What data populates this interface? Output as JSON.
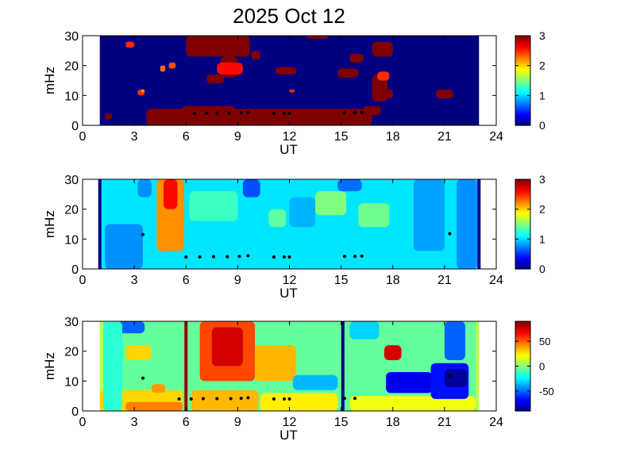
{
  "title": "2025 Oct 12",
  "colors": {
    "background": "#ffffff",
    "plot_fill_saturated": "#00008f",
    "marker": "#000000"
  },
  "chart_data": [
    {
      "type": "heatmap",
      "panel": "top",
      "colormap": "jet",
      "xlabel": "UT",
      "ylabel": "mHz",
      "xlim": [
        0,
        24
      ],
      "ylim": [
        0,
        30
      ],
      "xticks": [
        "0",
        "3",
        "6",
        "9",
        "12",
        "15",
        "18",
        "21",
        "24"
      ],
      "yticks": [
        "0",
        "10",
        "20",
        "30"
      ],
      "data_extent_ut": [
        1,
        23
      ],
      "colorbar": {
        "min": 0,
        "max": 3,
        "ticks": [
          "0",
          "1",
          "2",
          "3"
        ]
      },
      "background_value": 0,
      "features": [
        {
          "ut": [
            3.7,
            16.8
          ],
          "mhz": [
            0,
            5.5
          ],
          "value": 3
        },
        {
          "ut": [
            5.8,
            8.8
          ],
          "mhz": [
            5,
            6.5
          ],
          "value": 3
        },
        {
          "ut": [
            16.3,
            17.3
          ],
          "mhz": [
            3.5,
            6.5
          ],
          "value": 3
        },
        {
          "ut": [
            6.0,
            9.7
          ],
          "mhz": [
            23,
            30
          ],
          "value": 3
        },
        {
          "ut": [
            8.0,
            9.0
          ],
          "mhz": [
            16,
            23
          ],
          "value": 3
        },
        {
          "ut": [
            7.8,
            9.3
          ],
          "mhz": [
            17,
            21
          ],
          "value": 2.6
        },
        {
          "ut": [
            7.2,
            8.2
          ],
          "mhz": [
            14,
            17
          ],
          "value": 3
        },
        {
          "ut": [
            15.5,
            16.3
          ],
          "mhz": [
            21,
            24
          ],
          "value": 3
        },
        {
          "ut": [
            16.8,
            18.0
          ],
          "mhz": [
            23,
            28
          ],
          "value": 3
        },
        {
          "ut": [
            16.8,
            17.7
          ],
          "mhz": [
            8,
            17
          ],
          "value": 3
        },
        {
          "ut": [
            17.1,
            17.8
          ],
          "mhz": [
            15,
            18
          ],
          "value": 2.5
        },
        {
          "ut": [
            14.8,
            16.0
          ],
          "mhz": [
            16,
            19
          ],
          "value": 3
        },
        {
          "ut": [
            11.2,
            12.4
          ],
          "mhz": [
            17,
            19.5
          ],
          "value": 3
        },
        {
          "ut": [
            13.0,
            14.2
          ],
          "mhz": [
            29,
            30
          ],
          "value": 3
        },
        {
          "ut": [
            17.7,
            18.0
          ],
          "mhz": [
            9,
            12
          ],
          "value": 3
        },
        {
          "ut": [
            20.5,
            21.5
          ],
          "mhz": [
            9,
            12
          ],
          "value": 3
        },
        {
          "ut": [
            9.8,
            10.3
          ],
          "mhz": [
            22,
            25
          ],
          "value": 3
        },
        {
          "ut": [
            1.3,
            1.7
          ],
          "mhz": [
            2,
            4
          ],
          "value": 3
        },
        {
          "ut": [
            3.2,
            3.6
          ],
          "mhz": [
            10,
            12
          ],
          "value": 2.5
        },
        {
          "ut": [
            4.5,
            4.8
          ],
          "mhz": [
            18,
            20
          ],
          "value": 2.3
        },
        {
          "ut": [
            3.4,
            3.6
          ],
          "mhz": [
            11,
            12
          ],
          "value": 2.2
        },
        {
          "ut": [
            5.0,
            5.4
          ],
          "mhz": [
            19,
            21
          ],
          "value": 2.4
        },
        {
          "ut": [
            2.5,
            3.0
          ],
          "mhz": [
            26,
            28
          ],
          "value": 2.5
        },
        {
          "ut": [
            12.0,
            12.3
          ],
          "mhz": [
            11,
            12
          ],
          "value": 2.5
        }
      ],
      "markers": [
        {
          "ut": 6.5,
          "mhz": 3.9
        },
        {
          "ut": 7.2,
          "mhz": 4.0
        },
        {
          "ut": 7.8,
          "mhz": 4.1
        },
        {
          "ut": 8.5,
          "mhz": 4.1
        },
        {
          "ut": 9.2,
          "mhz": 4.2
        },
        {
          "ut": 9.6,
          "mhz": 4.4
        },
        {
          "ut": 11.1,
          "mhz": 4.0
        },
        {
          "ut": 11.7,
          "mhz": 4.0
        },
        {
          "ut": 12.0,
          "mhz": 4.0
        },
        {
          "ut": 15.2,
          "mhz": 4.2
        },
        {
          "ut": 15.8,
          "mhz": 4.2
        },
        {
          "ut": 16.2,
          "mhz": 4.3
        }
      ]
    },
    {
      "type": "heatmap",
      "panel": "middle",
      "colormap": "jet",
      "xlabel": "UT",
      "ylabel": "mHz",
      "xlim": [
        0,
        24
      ],
      "ylim": [
        0,
        30
      ],
      "xticks": [
        "0",
        "3",
        "6",
        "9",
        "12",
        "15",
        "18",
        "21",
        "24"
      ],
      "yticks": [
        "0",
        "10",
        "20",
        "30"
      ],
      "data_extent_ut": [
        1,
        23
      ],
      "colorbar": {
        "min": 0,
        "max": 3,
        "ticks": [
          "0",
          "1",
          "2",
          "3"
        ]
      },
      "background_value": 1.05,
      "edge_lines_ut": [
        1,
        23
      ],
      "features": [
        {
          "ut": [
            4.3,
            5.9
          ],
          "mhz": [
            6,
            30
          ],
          "value": 2.2
        },
        {
          "ut": [
            4.7,
            5.5
          ],
          "mhz": [
            20,
            30
          ],
          "value": 2.6
        },
        {
          "ut": [
            1.3,
            3.5
          ],
          "mhz": [
            0,
            15
          ],
          "value": 0.8
        },
        {
          "ut": [
            3.2,
            4.0
          ],
          "mhz": [
            24,
            30
          ],
          "value": 0.8
        },
        {
          "ut": [
            9.3,
            10.3
          ],
          "mhz": [
            24,
            30
          ],
          "value": 0.6
        },
        {
          "ut": [
            12.0,
            13.5
          ],
          "mhz": [
            14,
            24
          ],
          "value": 0.9
        },
        {
          "ut": [
            13.5,
            15.3
          ],
          "mhz": [
            18,
            26
          ],
          "value": 1.5
        },
        {
          "ut": [
            16.0,
            17.8
          ],
          "mhz": [
            14,
            22
          ],
          "value": 1.45
        },
        {
          "ut": [
            10.8,
            11.8
          ],
          "mhz": [
            14,
            20
          ],
          "value": 1.4
        },
        {
          "ut": [
            6.2,
            9.0
          ],
          "mhz": [
            16,
            26
          ],
          "value": 1.3
        },
        {
          "ut": [
            19.2,
            21.0
          ],
          "mhz": [
            6,
            30
          ],
          "value": 0.85
        },
        {
          "ut": [
            21.7,
            22.9
          ],
          "mhz": [
            0,
            30
          ],
          "value": 0.8
        },
        {
          "ut": [
            14.8,
            16.2
          ],
          "mhz": [
            26,
            30
          ],
          "value": 0.7
        }
      ],
      "markers": [
        {
          "ut": 3.5,
          "mhz": 11.5
        },
        {
          "ut": 6.0,
          "mhz": 4.0
        },
        {
          "ut": 6.8,
          "mhz": 4.0
        },
        {
          "ut": 7.6,
          "mhz": 4.1
        },
        {
          "ut": 8.4,
          "mhz": 4.1
        },
        {
          "ut": 9.1,
          "mhz": 4.2
        },
        {
          "ut": 9.6,
          "mhz": 4.4
        },
        {
          "ut": 11.1,
          "mhz": 4.0
        },
        {
          "ut": 11.7,
          "mhz": 4.0
        },
        {
          "ut": 12.0,
          "mhz": 4.0
        },
        {
          "ut": 15.2,
          "mhz": 4.2
        },
        {
          "ut": 15.8,
          "mhz": 4.2
        },
        {
          "ut": 16.2,
          "mhz": 4.3
        },
        {
          "ut": 21.3,
          "mhz": 11.8
        }
      ]
    },
    {
      "type": "heatmap",
      "panel": "bottom",
      "colormap": "jet",
      "xlabel": "UT",
      "ylabel": "mHz",
      "xlim": [
        0,
        24
      ],
      "ylim": [
        0,
        30
      ],
      "xticks": [
        "0",
        "3",
        "6",
        "9",
        "12",
        "15",
        "18",
        "21",
        "24"
      ],
      "yticks": [
        "0",
        "10",
        "20",
        "30"
      ],
      "data_extent_ut": [
        1,
        23
      ],
      "colorbar": {
        "min": -90,
        "max": 90,
        "ticks": [
          "50",
          "0",
          "-50"
        ],
        "tick_values": [
          50,
          0,
          -50
        ]
      },
      "background_value": -5,
      "vertical_lines": [
        {
          "ut": 6.0,
          "value": 85
        },
        {
          "ut": 15.1,
          "value": -90
        }
      ],
      "features": [
        {
          "ut": [
            1.0,
            1.2
          ],
          "mhz": [
            0,
            30
          ],
          "value": 10
        },
        {
          "ut": [
            22.8,
            23.0
          ],
          "mhz": [
            0,
            30
          ],
          "value": 10
        },
        {
          "ut": [
            1.0,
            5.8
          ],
          "mhz": [
            0,
            7
          ],
          "value": 30
        },
        {
          "ut": [
            2.5,
            5.8
          ],
          "mhz": [
            0,
            3
          ],
          "value": 45
        },
        {
          "ut": [
            6.3,
            10.2
          ],
          "mhz": [
            0,
            7
          ],
          "value": 35
        },
        {
          "ut": [
            10.3,
            14.8
          ],
          "mhz": [
            0,
            6
          ],
          "value": 25
        },
        {
          "ut": [
            15.5,
            22.8
          ],
          "mhz": [
            0,
            5
          ],
          "value": 20
        },
        {
          "ut": [
            6.8,
            10.0
          ],
          "mhz": [
            10,
            30
          ],
          "value": 55
        },
        {
          "ut": [
            7.5,
            9.3
          ],
          "mhz": [
            15,
            28
          ],
          "value": 75
        },
        {
          "ut": [
            10.0,
            12.4
          ],
          "mhz": [
            10,
            22
          ],
          "value": 35
        },
        {
          "ut": [
            2.5,
            4.0
          ],
          "mhz": [
            17,
            22
          ],
          "value": 30
        },
        {
          "ut": [
            17.5,
            18.5
          ],
          "mhz": [
            17,
            22
          ],
          "value": 75
        },
        {
          "ut": [
            17.6,
            20.3
          ],
          "mhz": [
            6,
            13
          ],
          "value": -70
        },
        {
          "ut": [
            20.2,
            22.4
          ],
          "mhz": [
            4,
            16
          ],
          "value": -65
        },
        {
          "ut": [
            21.0,
            22.3
          ],
          "mhz": [
            8,
            14
          ],
          "value": -85
        },
        {
          "ut": [
            21.0,
            22.2
          ],
          "mhz": [
            17,
            30
          ],
          "value": -50
        },
        {
          "ut": [
            1.8,
            3.6
          ],
          "mhz": [
            26,
            30
          ],
          "value": -50
        },
        {
          "ut": [
            12.2,
            14.8
          ],
          "mhz": [
            7,
            12
          ],
          "value": -35
        },
        {
          "ut": [
            15.5,
            17.2
          ],
          "mhz": [
            24,
            30
          ],
          "value": -30
        },
        {
          "ut": [
            4.0,
            4.8
          ],
          "mhz": [
            6,
            9
          ],
          "value": 40
        },
        {
          "ut": [
            1.2,
            2.3
          ],
          "mhz": [
            0,
            30
          ],
          "value": -15
        }
      ],
      "markers": [
        {
          "ut": 3.5,
          "mhz": 11.0
        },
        {
          "ut": 5.6,
          "mhz": 4.0
        },
        {
          "ut": 6.3,
          "mhz": 4.0
        },
        {
          "ut": 7.0,
          "mhz": 4.1
        },
        {
          "ut": 7.8,
          "mhz": 4.1
        },
        {
          "ut": 8.6,
          "mhz": 4.1
        },
        {
          "ut": 9.2,
          "mhz": 4.2
        },
        {
          "ut": 9.6,
          "mhz": 4.4
        },
        {
          "ut": 11.1,
          "mhz": 4.0
        },
        {
          "ut": 11.7,
          "mhz": 4.0
        },
        {
          "ut": 12.0,
          "mhz": 4.0
        },
        {
          "ut": 15.2,
          "mhz": 4.2
        },
        {
          "ut": 15.8,
          "mhz": 4.2
        },
        {
          "ut": 21.3,
          "mhz": 11.6
        }
      ]
    }
  ]
}
